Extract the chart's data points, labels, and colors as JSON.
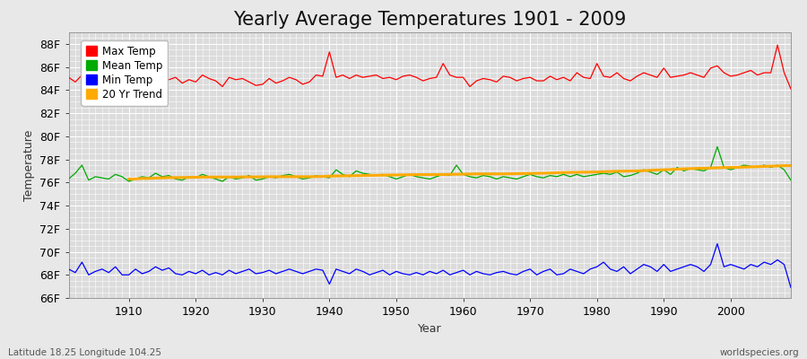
{
  "title": "Yearly Average Temperatures 1901 - 2009",
  "xlabel": "Year",
  "ylabel": "Temperature",
  "subtitle_left": "Latitude 18.25 Longitude 104.25",
  "subtitle_right": "worldspecies.org",
  "years": [
    1901,
    1902,
    1903,
    1904,
    1905,
    1906,
    1907,
    1908,
    1909,
    1910,
    1911,
    1912,
    1913,
    1914,
    1915,
    1916,
    1917,
    1918,
    1919,
    1920,
    1921,
    1922,
    1923,
    1924,
    1925,
    1926,
    1927,
    1928,
    1929,
    1930,
    1931,
    1932,
    1933,
    1934,
    1935,
    1936,
    1937,
    1938,
    1939,
    1940,
    1941,
    1942,
    1943,
    1944,
    1945,
    1946,
    1947,
    1948,
    1949,
    1950,
    1951,
    1952,
    1953,
    1954,
    1955,
    1956,
    1957,
    1958,
    1959,
    1960,
    1961,
    1962,
    1963,
    1964,
    1965,
    1966,
    1967,
    1968,
    1969,
    1970,
    1971,
    1972,
    1973,
    1974,
    1975,
    1976,
    1977,
    1978,
    1979,
    1980,
    1981,
    1982,
    1983,
    1984,
    1985,
    1986,
    1987,
    1988,
    1989,
    1990,
    1991,
    1992,
    1993,
    1994,
    1995,
    1996,
    1997,
    1998,
    1999,
    2000,
    2001,
    2002,
    2003,
    2004,
    2005,
    2006,
    2007,
    2008,
    2009
  ],
  "max_temp": [
    85.1,
    84.7,
    85.3,
    85.0,
    85.2,
    84.9,
    85.1,
    85.0,
    84.5,
    84.3,
    85.1,
    84.8,
    85.2,
    85.3,
    85.0,
    84.9,
    85.1,
    84.6,
    84.9,
    84.7,
    85.3,
    85.0,
    84.8,
    84.3,
    85.1,
    84.9,
    85.0,
    84.7,
    84.4,
    84.5,
    85.0,
    84.6,
    84.8,
    85.1,
    84.9,
    84.5,
    84.7,
    85.3,
    85.2,
    87.3,
    85.1,
    85.3,
    85.0,
    85.3,
    85.1,
    85.2,
    85.3,
    85.0,
    85.1,
    84.9,
    85.2,
    85.3,
    85.1,
    84.8,
    85.0,
    85.1,
    86.3,
    85.3,
    85.1,
    85.1,
    84.3,
    84.8,
    85.0,
    84.9,
    84.7,
    85.2,
    85.1,
    84.8,
    85.0,
    85.1,
    84.8,
    84.8,
    85.2,
    84.9,
    85.1,
    84.8,
    85.5,
    85.1,
    85.0,
    86.3,
    85.2,
    85.1,
    85.5,
    85.0,
    84.8,
    85.2,
    85.5,
    85.3,
    85.1,
    85.9,
    85.1,
    85.2,
    85.3,
    85.5,
    85.3,
    85.1,
    85.9,
    86.1,
    85.5,
    85.2,
    85.3,
    85.5,
    85.7,
    85.3,
    85.5,
    85.5,
    87.9,
    85.5,
    84.1
  ],
  "mean_temp": [
    76.3,
    76.8,
    77.5,
    76.2,
    76.5,
    76.4,
    76.3,
    76.7,
    76.5,
    76.1,
    76.3,
    76.5,
    76.4,
    76.8,
    76.5,
    76.6,
    76.3,
    76.2,
    76.5,
    76.4,
    76.7,
    76.5,
    76.3,
    76.1,
    76.5,
    76.3,
    76.4,
    76.6,
    76.2,
    76.3,
    76.5,
    76.4,
    76.6,
    76.7,
    76.5,
    76.3,
    76.4,
    76.6,
    76.5,
    76.4,
    77.1,
    76.7,
    76.5,
    77.0,
    76.8,
    76.7,
    76.6,
    76.7,
    76.5,
    76.3,
    76.5,
    76.7,
    76.5,
    76.4,
    76.3,
    76.5,
    76.7,
    76.6,
    77.5,
    76.7,
    76.5,
    76.4,
    76.6,
    76.5,
    76.3,
    76.5,
    76.4,
    76.3,
    76.5,
    76.7,
    76.5,
    76.4,
    76.6,
    76.5,
    76.7,
    76.5,
    76.7,
    76.5,
    76.6,
    76.7,
    76.8,
    76.7,
    76.9,
    76.5,
    76.6,
    76.8,
    77.1,
    76.9,
    76.7,
    77.1,
    76.7,
    77.3,
    77.0,
    77.2,
    77.1,
    77.0,
    77.3,
    79.1,
    77.3,
    77.1,
    77.3,
    77.5,
    77.4,
    77.3,
    77.5,
    77.3,
    77.5,
    77.1,
    76.2
  ],
  "min_temp": [
    68.5,
    68.2,
    69.1,
    68.0,
    68.3,
    68.5,
    68.2,
    68.7,
    68.0,
    68.0,
    68.5,
    68.1,
    68.3,
    68.7,
    68.4,
    68.6,
    68.1,
    68.0,
    68.3,
    68.1,
    68.4,
    68.0,
    68.2,
    68.0,
    68.4,
    68.1,
    68.3,
    68.5,
    68.1,
    68.2,
    68.4,
    68.1,
    68.3,
    68.5,
    68.3,
    68.1,
    68.3,
    68.5,
    68.4,
    67.2,
    68.5,
    68.3,
    68.1,
    68.5,
    68.3,
    68.0,
    68.2,
    68.4,
    68.0,
    68.3,
    68.1,
    68.0,
    68.2,
    68.0,
    68.3,
    68.1,
    68.4,
    68.0,
    68.2,
    68.4,
    68.0,
    68.3,
    68.1,
    68.0,
    68.2,
    68.3,
    68.1,
    68.0,
    68.3,
    68.5,
    68.0,
    68.3,
    68.5,
    68.0,
    68.1,
    68.5,
    68.3,
    68.1,
    68.5,
    68.7,
    69.1,
    68.5,
    68.3,
    68.7,
    68.1,
    68.5,
    68.9,
    68.7,
    68.3,
    68.9,
    68.3,
    68.5,
    68.7,
    68.9,
    68.7,
    68.3,
    68.9,
    70.7,
    68.7,
    68.9,
    68.7,
    68.5,
    68.9,
    68.7,
    69.1,
    68.9,
    69.3,
    68.9,
    66.9
  ],
  "trend_years": [
    1910,
    1911,
    1912,
    1913,
    1914,
    1915,
    1916,
    1917,
    1918,
    1919,
    1920,
    1921,
    1922,
    1923,
    1924,
    1925,
    1926,
    1927,
    1928,
    1929,
    1930,
    1931,
    1932,
    1933,
    1934,
    1935,
    1936,
    1937,
    1938,
    1939,
    1940,
    1941,
    1942,
    1943,
    1944,
    1945,
    1946,
    1947,
    1948,
    1949,
    1950,
    1951,
    1952,
    1953,
    1954,
    1955,
    1956,
    1957,
    1958,
    1959,
    1960,
    1961,
    1962,
    1963,
    1964,
    1965,
    1966,
    1967,
    1968,
    1969,
    1970,
    1971,
    1972,
    1973,
    1974,
    1975,
    1976,
    1977,
    1978,
    1979,
    1980,
    1981,
    1982,
    1983,
    1984,
    1985,
    1986,
    1987,
    1988,
    1989,
    1990,
    1991,
    1992,
    1993,
    1994,
    1995,
    1996,
    1997,
    1998,
    1999,
    2000,
    2001,
    2002,
    2003,
    2004,
    2005,
    2006,
    2007,
    2008,
    2009
  ],
  "trend_vals": [
    76.3,
    76.3,
    76.35,
    76.35,
    76.38,
    76.4,
    76.42,
    76.42,
    76.43,
    76.44,
    76.45,
    76.47,
    76.47,
    76.47,
    76.47,
    76.47,
    76.47,
    76.48,
    76.48,
    76.48,
    76.49,
    76.5,
    76.5,
    76.5,
    76.5,
    76.5,
    76.5,
    76.5,
    76.51,
    76.52,
    76.55,
    76.56,
    76.57,
    76.58,
    76.59,
    76.6,
    76.61,
    76.62,
    76.63,
    76.64,
    76.65,
    76.66,
    76.67,
    76.68,
    76.68,
    76.68,
    76.68,
    76.69,
    76.7,
    76.71,
    76.72,
    76.73,
    76.74,
    76.74,
    76.74,
    76.74,
    76.74,
    76.75,
    76.76,
    76.77,
    76.78,
    76.79,
    76.8,
    76.82,
    76.84,
    76.86,
    76.87,
    76.88,
    76.89,
    76.9,
    76.91,
    76.93,
    76.95,
    76.97,
    76.98,
    76.99,
    77.0,
    77.02,
    77.05,
    77.08,
    77.1,
    77.12,
    77.15,
    77.18,
    77.2,
    77.22,
    77.23,
    77.25,
    77.27,
    77.29,
    77.3,
    77.31,
    77.33,
    77.35,
    77.37,
    77.39,
    77.41,
    77.43,
    77.45,
    77.46
  ],
  "max_color": "#ff0000",
  "mean_color": "#00aa00",
  "min_color": "#0000ff",
  "trend_color": "#ffaa00",
  "bg_color": "#e8e8e8",
  "plot_bg_color": "#dcdcdc",
  "grid_color": "#ffffff",
  "ylim": [
    66,
    89
  ],
  "yticks": [
    66,
    68,
    70,
    72,
    74,
    76,
    78,
    80,
    82,
    84,
    86,
    88
  ],
  "ytick_labels": [
    "66F",
    "68F",
    "70F",
    "72F",
    "74F",
    "76F",
    "78F",
    "80F",
    "82F",
    "84F",
    "86F",
    "88F"
  ],
  "xlim": [
    1901,
    2009
  ],
  "xticks": [
    1910,
    1920,
    1930,
    1940,
    1950,
    1960,
    1970,
    1980,
    1990,
    2000
  ],
  "title_fontsize": 15,
  "axis_fontsize": 9,
  "label_fontsize": 8.5
}
